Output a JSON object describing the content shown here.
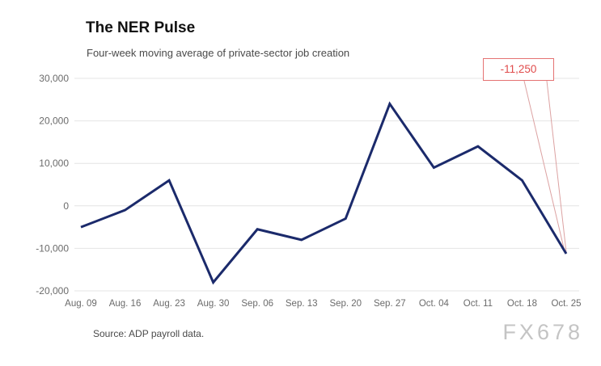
{
  "header": {
    "title": "The NER Pulse",
    "subtitle": "Four-week moving average of private-sector job creation"
  },
  "footer": {
    "source": "Source: ADP payroll data.",
    "watermark": "FX678"
  },
  "annotation": {
    "callout_label": "-11,250"
  },
  "colors": {
    "line": "#1b2a6b",
    "grid": "#e4e4e4",
    "axis_text": "#6b6b6b",
    "callout_red": "#e04b4b",
    "callout_pointer": "#dca2a2"
  },
  "chart_data": {
    "type": "line",
    "title": "The NER Pulse",
    "subtitle": "Four-week moving average of private-sector job creation",
    "categories": [
      "Aug. 09",
      "Aug. 16",
      "Aug. 23",
      "Aug. 30",
      "Sep. 06",
      "Sep. 13",
      "Sep. 20",
      "Sep. 27",
      "Oct. 04",
      "Oct. 11",
      "Oct. 18",
      "Oct. 25"
    ],
    "values": [
      -5000,
      -1000,
      6000,
      -18000,
      -5500,
      -8000,
      -3000,
      24000,
      9000,
      14000,
      6000,
      -11250
    ],
    "xlabel": "",
    "ylabel": "",
    "ylim": [
      -20000,
      30000
    ],
    "grid": true,
    "legend_position": "none",
    "y_ticks": [
      {
        "value": 30000,
        "label": "30,000"
      },
      {
        "value": 20000,
        "label": "20,000"
      },
      {
        "value": 10000,
        "label": "10,000"
      },
      {
        "value": 0,
        "label": "0"
      },
      {
        "value": -10000,
        "label": "-10,000"
      },
      {
        "value": -20000,
        "label": "-20,000"
      }
    ],
    "annotation": {
      "text": "-11,250",
      "target_index": 11,
      "target_value": -11250
    },
    "line_color": "#1b2a6b",
    "source": "Source: ADP payroll data."
  }
}
